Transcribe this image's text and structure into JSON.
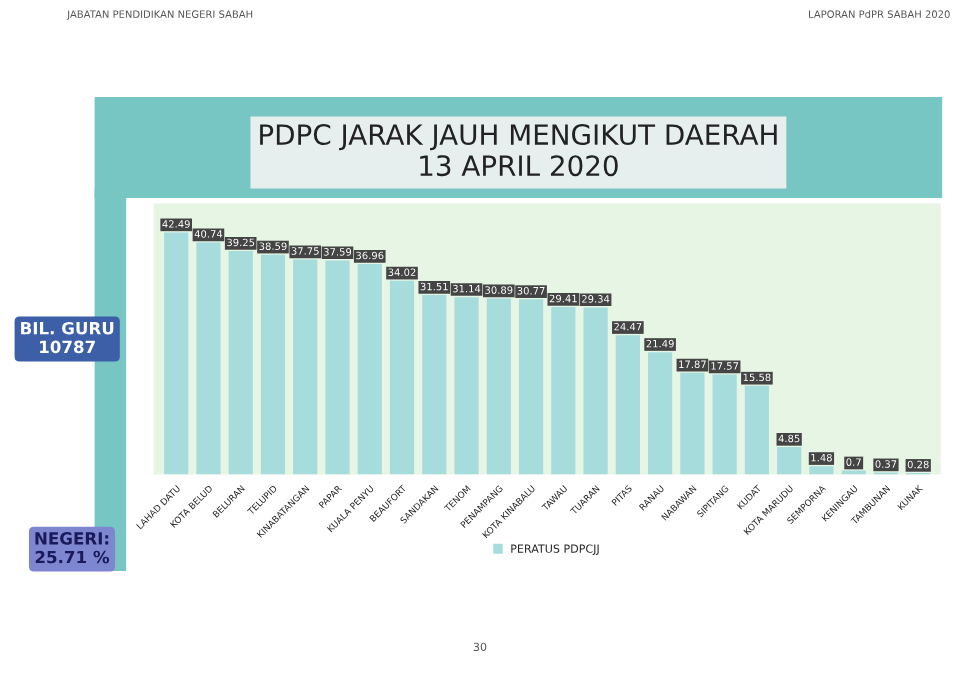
{
  "chart_data": {
    "type": "bar",
    "title": "PDPC JARAK JAUH MENGIKUT DAERAH\n13 APRIL 2020",
    "categories": [
      "LAHAD DATU",
      "KOTA BELUD",
      "BELURAN",
      "TELUPID",
      "KINABATANGAN",
      "PAPAR",
      "KUALA PENYU",
      "BEAUFORT",
      "SANDAKAN",
      "TENOM",
      "PENAMPANG",
      "KOTA KINABALU",
      "TAWAU",
      "TUARAN",
      "PITAS",
      "RANAU",
      "NABAWAN",
      "SIPITANG",
      "KUDAT",
      "KOTA MARUDU",
      "SEMPORNA",
      "KENINGAU",
      "TAMBUNAN",
      "KUNAK"
    ],
    "series": [
      {
        "name": "PERATUS PDPCJJ",
        "color": "#a6dcdc",
        "values": [
          42.49,
          40.74,
          39.25,
          38.59,
          37.75,
          37.59,
          36.96,
          34.02,
          31.51,
          31.14,
          30.89,
          30.77,
          29.41,
          29.34,
          24.47,
          21.49,
          17.87,
          17.57,
          15.58,
          4.85,
          1.48,
          0.7,
          0.37,
          0.28
        ]
      }
    ],
    "data_labels": true,
    "grid": false,
    "legend": "bottom",
    "annotations": [
      "JABATAN PENDIDIKAN NEGERI SABAH",
      "LAPORAN PdPR SABAH 2020",
      "BIL. GURU\n10787",
      "NEGERI:\n25.71 %",
      "30"
    ]
  }
}
